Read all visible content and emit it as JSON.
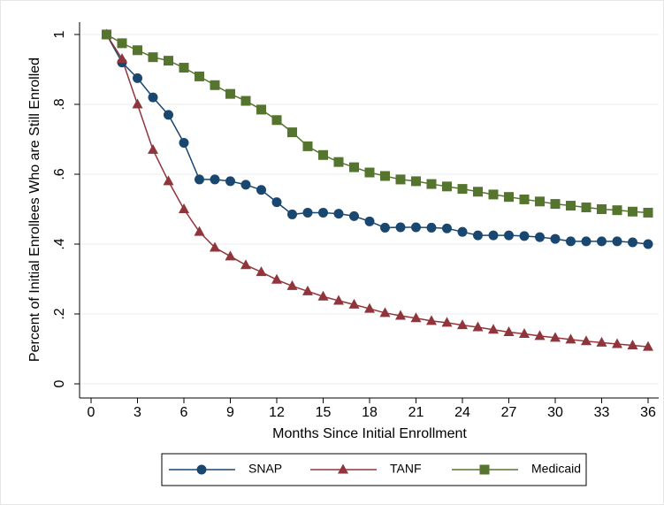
{
  "chart_data": {
    "type": "line",
    "xlabel": "Months Since Initial Enrollment",
    "ylabel": "Percent of Initial Enrollees Who are Still Enrolled",
    "x": [
      1,
      2,
      3,
      4,
      5,
      6,
      7,
      8,
      9,
      10,
      11,
      12,
      13,
      14,
      15,
      16,
      17,
      18,
      19,
      20,
      21,
      22,
      23,
      24,
      25,
      26,
      27,
      28,
      29,
      30,
      31,
      32,
      33,
      34,
      35,
      36
    ],
    "series": [
      {
        "name": "SNAP",
        "color": "#1a476f",
        "marker": "circle",
        "values": [
          1,
          0.92,
          0.875,
          0.82,
          0.77,
          0.69,
          0.585,
          0.585,
          0.58,
          0.57,
          0.555,
          0.52,
          0.485,
          0.49,
          0.49,
          0.487,
          0.48,
          0.465,
          0.447,
          0.448,
          0.448,
          0.447,
          0.445,
          0.435,
          0.425,
          0.425,
          0.425,
          0.423,
          0.42,
          0.415,
          0.408,
          0.408,
          0.408,
          0.408,
          0.405,
          0.4
        ]
      },
      {
        "name": "TANF",
        "color": "#90353b",
        "marker": "triangle",
        "values": [
          1,
          0.93,
          0.8,
          0.67,
          0.58,
          0.5,
          0.435,
          0.39,
          0.365,
          0.34,
          0.32,
          0.298,
          0.28,
          0.265,
          0.25,
          0.238,
          0.227,
          0.215,
          0.203,
          0.195,
          0.188,
          0.18,
          0.175,
          0.168,
          0.162,
          0.155,
          0.148,
          0.143,
          0.137,
          0.132,
          0.127,
          0.122,
          0.118,
          0.114,
          0.11,
          0.106
        ]
      },
      {
        "name": "Medicaid",
        "color": "#55752f",
        "marker": "square",
        "values": [
          1,
          0.975,
          0.955,
          0.935,
          0.925,
          0.905,
          0.88,
          0.855,
          0.83,
          0.81,
          0.785,
          0.755,
          0.72,
          0.68,
          0.655,
          0.635,
          0.62,
          0.605,
          0.595,
          0.585,
          0.58,
          0.572,
          0.565,
          0.558,
          0.55,
          0.542,
          0.535,
          0.528,
          0.522,
          0.515,
          0.51,
          0.505,
          0.5,
          0.497,
          0.493,
          0.49
        ]
      }
    ],
    "xlim": [
      0,
      36
    ],
    "xticks": [
      0,
      3,
      6,
      9,
      12,
      15,
      18,
      21,
      24,
      27,
      30,
      33,
      36
    ],
    "ylim": [
      0,
      1
    ],
    "yticks": [
      0,
      {
        "value": 0.2,
        "label": ".2"
      },
      {
        "value": 0.4,
        "label": ".4"
      },
      {
        "value": 0.6,
        "label": ".6"
      },
      {
        "value": 0.8,
        "label": ".8"
      },
      1
    ],
    "grid": true,
    "legend": "bottom"
  }
}
